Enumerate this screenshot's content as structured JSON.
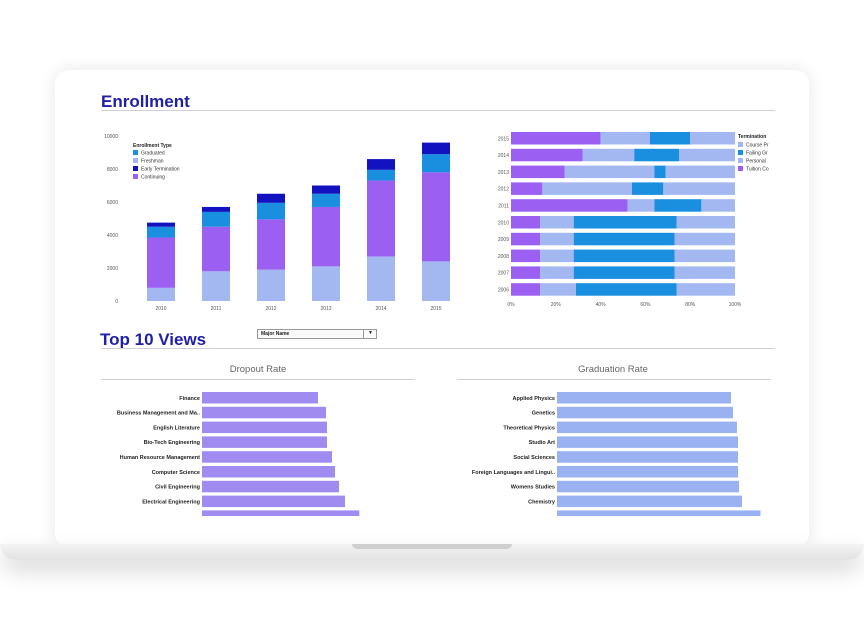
{
  "page": {
    "enrollment_title": "Enrollment",
    "top_views_title": "Top 10 Views",
    "major_select": {
      "value": "Major Name"
    },
    "dropout_title": "Dropout Rate",
    "graduation_title": "Graduation Rate"
  },
  "colors": {
    "title": "#1f1fa8",
    "graduated": "#1a8fe0",
    "freshman": "#a3b8f0",
    "early_termination": "#1212c0",
    "continuing": "#9b5ff2",
    "course": "#a3b8f0",
    "failing": "#1a8fe0",
    "personal": "#a3b8f0",
    "tuition": "#9b5ff2",
    "bar_purple": "#a08cf0",
    "bar_blue": "#9bb2f2"
  },
  "chart_data": [
    {
      "id": "enrollment",
      "type": "bar",
      "stacked": true,
      "categories": [
        "2010",
        "2011",
        "2012",
        "2013",
        "2014",
        "2015"
      ],
      "series": [
        {
          "name": "Continuing",
          "values": [
            3050,
            2700,
            3050,
            3600,
            4600,
            5400
          ]
        },
        {
          "name": "Freshman",
          "values": [
            800,
            1800,
            1900,
            2100,
            2700,
            2400
          ]
        },
        {
          "name": "Graduated",
          "values": [
            650,
            900,
            1000,
            800,
            650,
            1100
          ]
        },
        {
          "name": "Early Termination",
          "values": [
            250,
            300,
            550,
            500,
            650,
            700
          ]
        }
      ],
      "ylim": [
        0,
        10000
      ],
      "yticks": [
        "0",
        "2000",
        "4000",
        "6000",
        "8000",
        "10000"
      ],
      "legend_title": "Enrollment Type",
      "legend_items": [
        "Graduated",
        "Freshman",
        "Early Termination",
        "Continuing"
      ],
      "legend_placement": "top-left"
    },
    {
      "id": "termination",
      "type": "bar",
      "orientation": "horizontal",
      "stacked_percent": true,
      "categories": [
        "2015",
        "2014",
        "2013",
        "2012",
        "2011",
        "2010",
        "2009",
        "2008",
        "2007",
        "2006"
      ],
      "series": [
        {
          "name": "Tuition Co",
          "values": [
            40,
            32,
            24,
            14,
            52,
            13,
            13,
            13,
            13,
            13
          ]
        },
        {
          "name": "Personal",
          "values": [
            22,
            23,
            40,
            40,
            12,
            15,
            15,
            15,
            15,
            16
          ]
        },
        {
          "name": "Failing Gr",
          "values": [
            18,
            20,
            5,
            14,
            21,
            46,
            45,
            45,
            45,
            45
          ]
        },
        {
          "name": "Course Pr",
          "values": [
            20,
            25,
            31,
            32,
            15,
            26,
            27,
            27,
            27,
            26
          ]
        }
      ],
      "xticks": [
        "0%",
        "20%",
        "40%",
        "60%",
        "80%",
        "100%"
      ],
      "legend_title": "Termination",
      "legend_items": [
        "Course Pr",
        "Failing Gr",
        "Personal",
        "Tuition Co"
      ],
      "legend_placement": "right"
    },
    {
      "id": "dropout",
      "type": "bar",
      "orientation": "horizontal",
      "title": "Dropout Rate",
      "categories": [
        "Finance",
        "Business Management and Ma..",
        "English Literature",
        "Bio-Tech Engineering",
        "Human Resource Management",
        "Computer Science",
        "Civil Engineering",
        "Electrical Engineering"
      ],
      "values": [
        116,
        124,
        125,
        125,
        130,
        133,
        137,
        143
      ]
    },
    {
      "id": "graduation",
      "type": "bar",
      "orientation": "horizontal",
      "title": "Graduation Rate",
      "categories": [
        "Applied Physics",
        "Genetics",
        "Theoretical Physics",
        "Studio Art",
        "Social Sciences",
        "Foreign Languages and Lingui..",
        "Womens Studies",
        "Chemistry"
      ],
      "values": [
        174,
        176,
        180,
        181,
        181,
        181,
        182,
        185
      ]
    }
  ]
}
